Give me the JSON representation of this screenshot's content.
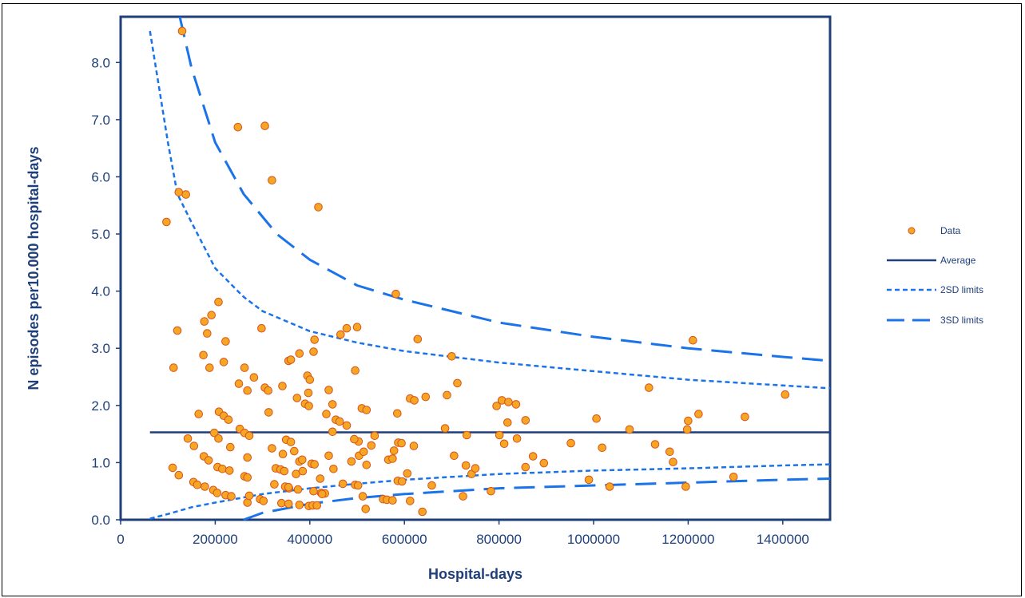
{
  "chart_data": {
    "type": "scatter",
    "xlabel": "Hospital-days",
    "ylabel": "N episodes per10.000 hospital-days",
    "xlim": [
      0,
      1500000
    ],
    "ylim": [
      0,
      8.8
    ],
    "x_ticks": [
      "0",
      "200000",
      "400000",
      "600000",
      "800000",
      "1000000",
      "1200000",
      "1400000"
    ],
    "x_tick_values": [
      0,
      200000,
      400000,
      600000,
      800000,
      1000000,
      1200000,
      1400000
    ],
    "y_ticks": [
      "0.0",
      "1.0",
      "2.0",
      "3.0",
      "4.0",
      "5.0",
      "6.0",
      "7.0",
      "8.0"
    ],
    "y_tick_values": [
      0,
      1,
      2,
      3,
      4,
      5,
      6,
      7,
      8
    ],
    "grid": false,
    "legend_position": "right",
    "legend": {
      "data": "Data",
      "average": "Average",
      "sd2": "2SD limits",
      "sd3": "3SD limits"
    },
    "colors": {
      "axis": "#1f3f7a",
      "average": "#1f3f7a",
      "limits": "#1a73e8",
      "marker_fill": "#f5a623",
      "marker_edge": "#d9531e"
    },
    "average": 1.53,
    "sd2_upper": [
      [
        62000,
        8.55
      ],
      [
        100000,
        6.6
      ],
      [
        120000,
        5.7
      ],
      [
        150000,
        5.2
      ],
      [
        200000,
        4.4
      ],
      [
        260000,
        3.9
      ],
      [
        300000,
        3.65
      ],
      [
        400000,
        3.3
      ],
      [
        500000,
        3.1
      ],
      [
        600000,
        2.95
      ],
      [
        800000,
        2.75
      ],
      [
        1000000,
        2.6
      ],
      [
        1200000,
        2.45
      ],
      [
        1400000,
        2.35
      ],
      [
        1500000,
        2.3
      ]
    ],
    "sd2_lower": [
      [
        62000,
        0.02
      ],
      [
        100000,
        0.1
      ],
      [
        150000,
        0.22
      ],
      [
        200000,
        0.3
      ],
      [
        300000,
        0.45
      ],
      [
        400000,
        0.55
      ],
      [
        500000,
        0.63
      ],
      [
        600000,
        0.7
      ],
      [
        800000,
        0.8
      ],
      [
        1000000,
        0.86
      ],
      [
        1200000,
        0.9
      ],
      [
        1400000,
        0.95
      ],
      [
        1500000,
        0.97
      ]
    ],
    "sd3_upper": [
      [
        125000,
        8.8
      ],
      [
        150000,
        7.9
      ],
      [
        200000,
        6.6
      ],
      [
        260000,
        5.7
      ],
      [
        330000,
        5.0
      ],
      [
        400000,
        4.55
      ],
      [
        500000,
        4.1
      ],
      [
        600000,
        3.85
      ],
      [
        800000,
        3.45
      ],
      [
        1000000,
        3.2
      ],
      [
        1200000,
        3.0
      ],
      [
        1400000,
        2.85
      ],
      [
        1500000,
        2.78
      ]
    ],
    "sd3_lower": [
      [
        260000,
        0.0
      ],
      [
        300000,
        0.12
      ],
      [
        400000,
        0.28
      ],
      [
        500000,
        0.38
      ],
      [
        600000,
        0.45
      ],
      [
        800000,
        0.55
      ],
      [
        1000000,
        0.6
      ],
      [
        1200000,
        0.65
      ],
      [
        1400000,
        0.7
      ],
      [
        1500000,
        0.72
      ]
    ],
    "points": [
      [
        130000,
        8.55
      ],
      [
        97000,
        5.21
      ],
      [
        123000,
        5.73
      ],
      [
        138000,
        5.69
      ],
      [
        248000,
        6.87
      ],
      [
        305000,
        6.89
      ],
      [
        320000,
        5.94
      ],
      [
        418000,
        5.47
      ],
      [
        582000,
        3.95
      ],
      [
        1210000,
        3.14
      ],
      [
        1405000,
        2.19
      ],
      [
        120000,
        3.31
      ],
      [
        112000,
        2.66
      ],
      [
        177000,
        3.47
      ],
      [
        192000,
        3.58
      ],
      [
        207000,
        3.81
      ],
      [
        175000,
        2.88
      ],
      [
        183000,
        3.26
      ],
      [
        222000,
        3.12
      ],
      [
        188000,
        2.66
      ],
      [
        218000,
        2.76
      ],
      [
        262000,
        2.66
      ],
      [
        298000,
        3.35
      ],
      [
        268000,
        2.26
      ],
      [
        282000,
        2.49
      ],
      [
        250000,
        2.38
      ],
      [
        305000,
        2.31
      ],
      [
        312000,
        2.26
      ],
      [
        355000,
        2.78
      ],
      [
        360000,
        2.8
      ],
      [
        378000,
        2.91
      ],
      [
        342000,
        2.34
      ],
      [
        373000,
        2.13
      ],
      [
        395000,
        2.52
      ],
      [
        400000,
        2.45
      ],
      [
        408000,
        2.94
      ],
      [
        410000,
        3.15
      ],
      [
        440000,
        2.27
      ],
      [
        465000,
        3.24
      ],
      [
        478000,
        3.35
      ],
      [
        500000,
        3.37
      ],
      [
        496000,
        2.61
      ],
      [
        448000,
        2.02
      ],
      [
        435000,
        1.85
      ],
      [
        455000,
        1.75
      ],
      [
        478000,
        1.65
      ],
      [
        390000,
        2.03
      ],
      [
        398000,
        1.99
      ],
      [
        397000,
        2.22
      ],
      [
        165000,
        1.85
      ],
      [
        208000,
        1.89
      ],
      [
        218000,
        1.82
      ],
      [
        228000,
        1.75
      ],
      [
        198000,
        1.52
      ],
      [
        207000,
        1.42
      ],
      [
        142000,
        1.42
      ],
      [
        155000,
        1.29
      ],
      [
        232000,
        1.27
      ],
      [
        252000,
        1.59
      ],
      [
        262000,
        1.52
      ],
      [
        272000,
        1.47
      ],
      [
        313000,
        1.88
      ],
      [
        320000,
        1.25
      ],
      [
        350000,
        1.4
      ],
      [
        360000,
        1.36
      ],
      [
        343000,
        1.15
      ],
      [
        367000,
        1.2
      ],
      [
        378000,
        1.02
      ],
      [
        384000,
        1.05
      ],
      [
        176000,
        1.11
      ],
      [
        186000,
        1.04
      ],
      [
        205000,
        0.92
      ],
      [
        215000,
        0.89
      ],
      [
        230000,
        0.86
      ],
      [
        268000,
        1.09
      ],
      [
        110000,
        0.91
      ],
      [
        123000,
        0.78
      ],
      [
        154000,
        0.66
      ],
      [
        162000,
        0.61
      ],
      [
        178000,
        0.58
      ],
      [
        196000,
        0.52
      ],
      [
        204000,
        0.47
      ],
      [
        222000,
        0.43
      ],
      [
        234000,
        0.41
      ],
      [
        262000,
        0.76
      ],
      [
        268000,
        0.74
      ],
      [
        295000,
        0.36
      ],
      [
        302000,
        0.33
      ],
      [
        328000,
        0.9
      ],
      [
        338000,
        0.88
      ],
      [
        346000,
        0.85
      ],
      [
        325000,
        0.62
      ],
      [
        348000,
        0.58
      ],
      [
        356000,
        0.55
      ],
      [
        371000,
        0.8
      ],
      [
        385000,
        0.85
      ],
      [
        404000,
        0.98
      ],
      [
        410000,
        0.97
      ],
      [
        422000,
        0.72
      ],
      [
        440000,
        1.12
      ],
      [
        450000,
        0.89
      ],
      [
        448000,
        1.54
      ],
      [
        463000,
        1.72
      ],
      [
        503000,
        1.37
      ],
      [
        510000,
        1.95
      ],
      [
        520000,
        1.92
      ],
      [
        530000,
        1.3
      ],
      [
        537000,
        1.47
      ],
      [
        494000,
        1.41
      ],
      [
        504000,
        1.12
      ],
      [
        514000,
        1.19
      ],
      [
        520000,
        0.96
      ],
      [
        488000,
        1.02
      ],
      [
        470000,
        0.63
      ],
      [
        496000,
        0.61
      ],
      [
        502000,
        0.6
      ],
      [
        512000,
        0.41
      ],
      [
        518000,
        0.19
      ],
      [
        555000,
        0.36
      ],
      [
        563000,
        0.35
      ],
      [
        575000,
        0.34
      ],
      [
        566000,
        1.05
      ],
      [
        575000,
        1.07
      ],
      [
        578000,
        1.21
      ],
      [
        587000,
        1.35
      ],
      [
        594000,
        1.34
      ],
      [
        585000,
        1.86
      ],
      [
        586000,
        0.68
      ],
      [
        595000,
        0.67
      ],
      [
        606000,
        0.81
      ],
      [
        612000,
        0.33
      ],
      [
        612000,
        2.12
      ],
      [
        621000,
        2.09
      ],
      [
        620000,
        1.29
      ],
      [
        628000,
        3.16
      ],
      [
        645000,
        2.15
      ],
      [
        638000,
        0.14
      ],
      [
        658000,
        0.6
      ],
      [
        686000,
        1.6
      ],
      [
        690000,
        2.18
      ],
      [
        700000,
        2.86
      ],
      [
        705000,
        1.12
      ],
      [
        712000,
        2.39
      ],
      [
        724000,
        0.41
      ],
      [
        730000,
        0.95
      ],
      [
        732000,
        1.48
      ],
      [
        742000,
        0.8
      ],
      [
        750000,
        0.9
      ],
      [
        783000,
        0.5
      ],
      [
        795000,
        1.99
      ],
      [
        801000,
        1.48
      ],
      [
        806000,
        2.09
      ],
      [
        811000,
        1.33
      ],
      [
        818000,
        1.7
      ],
      [
        820000,
        2.06
      ],
      [
        836000,
        2.02
      ],
      [
        838000,
        1.42
      ],
      [
        856000,
        1.74
      ],
      [
        856000,
        0.92
      ],
      [
        872000,
        1.11
      ],
      [
        895000,
        0.99
      ],
      [
        952000,
        1.34
      ],
      [
        990000,
        0.7
      ],
      [
        1006000,
        1.77
      ],
      [
        1018000,
        1.26
      ],
      [
        1034000,
        0.58
      ],
      [
        1076000,
        1.58
      ],
      [
        1117000,
        2.31
      ],
      [
        1130000,
        1.32
      ],
      [
        1161000,
        1.19
      ],
      [
        1168000,
        1.01
      ],
      [
        1195000,
        0.58
      ],
      [
        1198000,
        1.58
      ],
      [
        1200000,
        1.73
      ],
      [
        1222000,
        1.85
      ],
      [
        1320000,
        1.8
      ],
      [
        1296000,
        0.75
      ],
      [
        340000,
        0.29
      ],
      [
        355000,
        0.28
      ],
      [
        378000,
        0.26
      ],
      [
        398000,
        0.24
      ],
      [
        406000,
        0.25
      ],
      [
        415000,
        0.25
      ],
      [
        424000,
        0.47
      ],
      [
        432000,
        0.46
      ],
      [
        426000,
        0.45
      ],
      [
        408000,
        0.5
      ],
      [
        355000,
        0.57
      ],
      [
        375000,
        0.53
      ],
      [
        268000,
        0.3
      ],
      [
        272000,
        0.42
      ]
    ]
  }
}
